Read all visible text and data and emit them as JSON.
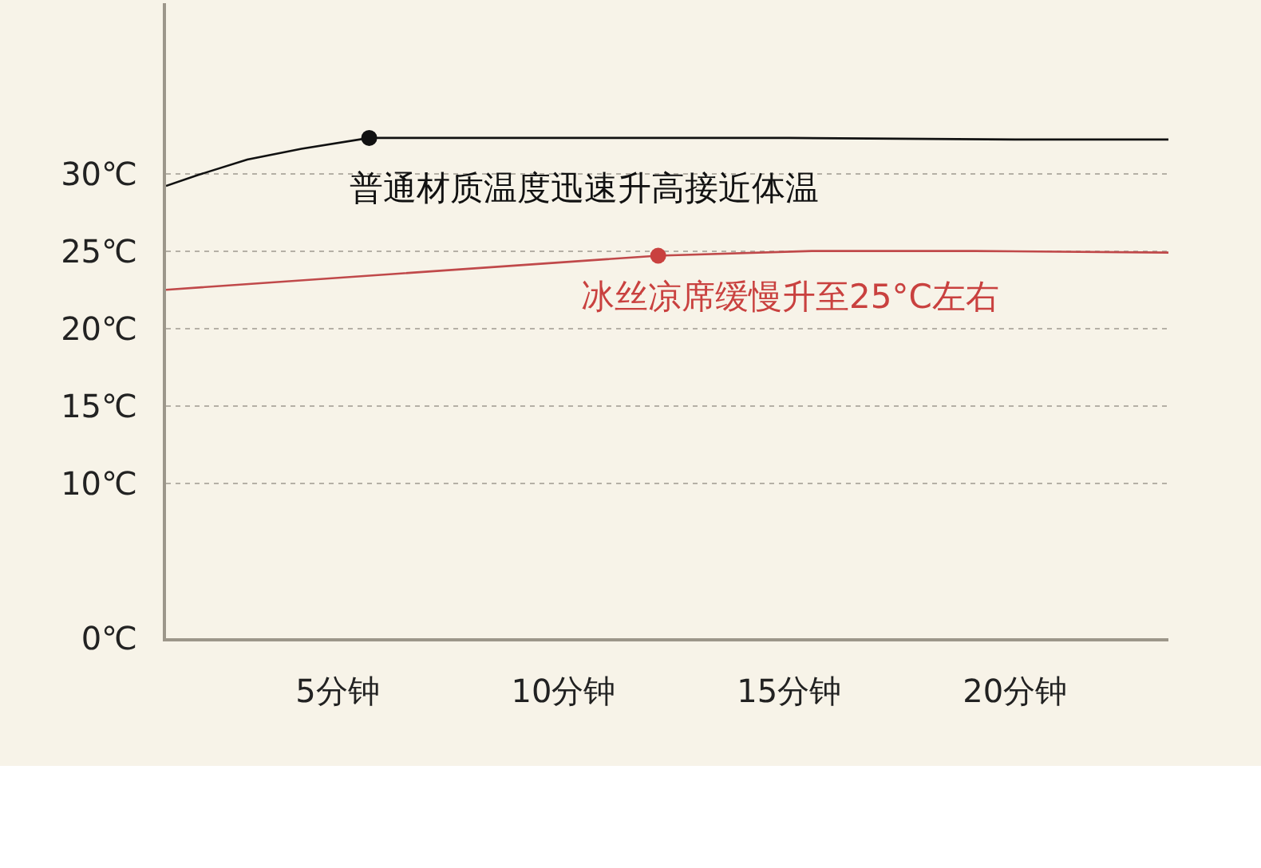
{
  "chart_data": {
    "type": "line",
    "xlim": [
      1.2,
      23.4
    ],
    "xticks": [
      {
        "value": 5,
        "label": "5分钟"
      },
      {
        "value": 10,
        "label": "10分钟"
      },
      {
        "value": 15,
        "label": "15分钟"
      },
      {
        "value": 20,
        "label": "20分钟"
      }
    ],
    "ylim": [
      0,
      41
    ],
    "yticks": [
      {
        "value": 0,
        "label": "0℃"
      },
      {
        "value": 10,
        "label": "10℃"
      },
      {
        "value": 15,
        "label": "15℃"
      },
      {
        "value": 20,
        "label": "20℃"
      },
      {
        "value": 25,
        "label": "25℃"
      },
      {
        "value": 30,
        "label": "30℃"
      }
    ],
    "grid": "y",
    "marker": "none",
    "line_style": "solid",
    "series": [
      {
        "color": "#111111",
        "x": [
          1.2,
          1.9,
          3.0,
          4.2,
          5.7,
          10,
          15,
          20,
          23.4
        ],
        "values": [
          29.2,
          29.9,
          30.9,
          31.6,
          32.3,
          32.3,
          32.3,
          32.2,
          32.2
        ]
      },
      {
        "color": "#c0494a",
        "x": [
          1.2,
          12.1,
          15.5,
          19.1,
          23.4
        ],
        "values": [
          22.5,
          24.7,
          25.0,
          25.0,
          24.9
        ]
      },
      {
        "type": "scatter",
        "color": "#111111",
        "marker": "circle",
        "x": [
          5.7
        ],
        "values": [
          32.3
        ]
      },
      {
        "type": "scatter",
        "color": "#c9413f",
        "marker": "circle",
        "x": [
          12.1
        ],
        "values": [
          24.7
        ]
      }
    ],
    "annotations": [
      {
        "text": "普通材质温度迅速升高接近体温",
        "x": 5.7,
        "y": 32.3
      },
      {
        "text": "冰丝凉席缓慢升至25°C左右",
        "x": 12.1,
        "y": 24.7
      }
    ]
  }
}
